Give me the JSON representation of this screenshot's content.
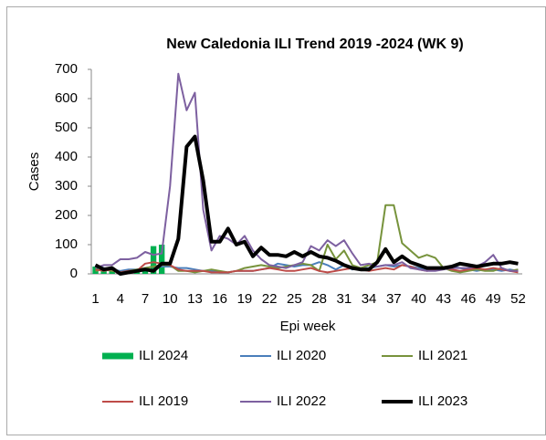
{
  "chart_data": {
    "type": "line",
    "title": "New Caledonia ILI Trend 2019 -2024 (WK 9)",
    "x_label": "Epi week",
    "y_label": "Cases",
    "categories": [
      1,
      null,
      null,
      4,
      null,
      null,
      7,
      null,
      null,
      10,
      null,
      null,
      13,
      null,
      null,
      16,
      null,
      null,
      19,
      null,
      null,
      22,
      null,
      null,
      25,
      null,
      null,
      28,
      null,
      null,
      31,
      null,
      null,
      34,
      null,
      null,
      37,
      null,
      null,
      40,
      null,
      null,
      43,
      null,
      null,
      46,
      null,
      null,
      49,
      null,
      null,
      52
    ],
    "ylim": [
      0,
      700
    ],
    "yticks": [
      0,
      100,
      200,
      300,
      400,
      500,
      600,
      700
    ],
    "grid": false,
    "legend": "bottom",
    "series": [
      {
        "name": "ILI 2024",
        "type": "bar",
        "color": "#00b050",
        "values": [
          25,
          10,
          15,
          5,
          10,
          10,
          20,
          95,
          100,
          null,
          null,
          null,
          null,
          null,
          null,
          null,
          null,
          null,
          null,
          null,
          null,
          null,
          null,
          null,
          null,
          null,
          null,
          null,
          null,
          null,
          null,
          null,
          null,
          null,
          null,
          null,
          null,
          null,
          null,
          null,
          null,
          null,
          null,
          null,
          null,
          null,
          null,
          null,
          null,
          null,
          null,
          null
        ]
      },
      {
        "name": "ILI 2020",
        "type": "line",
        "color": "#4a7ebb",
        "values": [
          30,
          20,
          15,
          10,
          15,
          15,
          20,
          25,
          25,
          25,
          20,
          20,
          15,
          10,
          10,
          5,
          5,
          10,
          10,
          10,
          15,
          20,
          35,
          30,
          25,
          30,
          30,
          40,
          30,
          15,
          30,
          15,
          20,
          20,
          25,
          30,
          25,
          30,
          25,
          20,
          15,
          15,
          20,
          25,
          20,
          15,
          10,
          15,
          15,
          10,
          15,
          10
        ]
      },
      {
        "name": "ILI 2021",
        "type": "line",
        "color": "#77933c",
        "values": [
          10,
          15,
          10,
          5,
          10,
          15,
          20,
          25,
          30,
          30,
          10,
          10,
          5,
          10,
          15,
          10,
          5,
          10,
          20,
          25,
          30,
          25,
          20,
          25,
          30,
          35,
          30,
          10,
          100,
          50,
          80,
          30,
          20,
          30,
          40,
          235,
          235,
          105,
          80,
          55,
          65,
          55,
          20,
          10,
          5,
          10,
          15,
          10,
          10,
          20,
          10,
          15
        ]
      },
      {
        "name": "ILI 2019",
        "type": "line",
        "color": "#be4b48",
        "values": [
          15,
          10,
          15,
          5,
          10,
          10,
          35,
          40,
          35,
          30,
          15,
          10,
          10,
          10,
          5,
          5,
          5,
          10,
          10,
          10,
          15,
          20,
          15,
          10,
          10,
          15,
          20,
          10,
          5,
          10,
          15,
          20,
          15,
          10,
          15,
          20,
          15,
          30,
          25,
          15,
          10,
          15,
          20,
          15,
          10,
          15,
          20,
          15,
          20,
          15,
          10,
          5
        ]
      },
      {
        "name": "ILI 2022",
        "type": "line",
        "color": "#7d60a0",
        "values": [
          20,
          30,
          30,
          50,
          50,
          55,
          75,
          65,
          70,
          300,
          685,
          560,
          620,
          220,
          80,
          130,
          120,
          100,
          130,
          80,
          50,
          30,
          25,
          20,
          30,
          40,
          95,
          80,
          115,
          95,
          115,
          70,
          30,
          35,
          25,
          30,
          30,
          40,
          20,
          15,
          10,
          10,
          15,
          20,
          20,
          20,
          25,
          40,
          65,
          20,
          10,
          10
        ]
      },
      {
        "name": "ILI 2023",
        "type": "line",
        "color": "#000000",
        "width": 4,
        "values": [
          30,
          15,
          20,
          0,
          5,
          10,
          15,
          10,
          35,
          35,
          120,
          435,
          470,
          320,
          110,
          110,
          155,
          100,
          110,
          60,
          90,
          65,
          65,
          60,
          75,
          60,
          75,
          60,
          55,
          45,
          30,
          20,
          15,
          15,
          40,
          85,
          40,
          60,
          40,
          30,
          20,
          20,
          20,
          25,
          35,
          30,
          25,
          30,
          35,
          35,
          40,
          35
        ]
      }
    ]
  }
}
